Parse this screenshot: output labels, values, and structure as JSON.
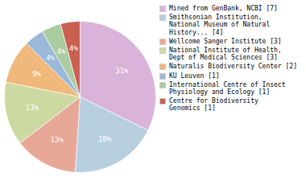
{
  "chart_data": {
    "type": "pie",
    "categories": [
      "Mined from GenBank, NCBI [7]",
      "Smithsonian Institution,\nNational Museum of Natural\nHistory... [4]",
      "Wellcome Sanger Institute [3]",
      "National Institute of Health,\nDept of Medical Sciences [3]",
      "Naturalis Biodiversity Center [2]",
      "KU Leuven [1]",
      "International Centre of Insect\nPhysiology and Ecology [1]",
      "Centre for Biodiversity\nGenomics [1]"
    ],
    "values": [
      31,
      18,
      13,
      13,
      9,
      4,
      4,
      4
    ],
    "value_labels": [
      "31%",
      "18%",
      "13%",
      "13%",
      "9%",
      "4%",
      "4%",
      "4%"
    ],
    "colors": [
      "#d9b3d9",
      "#b8cfe0",
      "#e8a898",
      "#ccd9a0",
      "#f0b87a",
      "#9ab8d8",
      "#aacca0",
      "#c96050"
    ],
    "data_labels": true,
    "legend": "right"
  }
}
